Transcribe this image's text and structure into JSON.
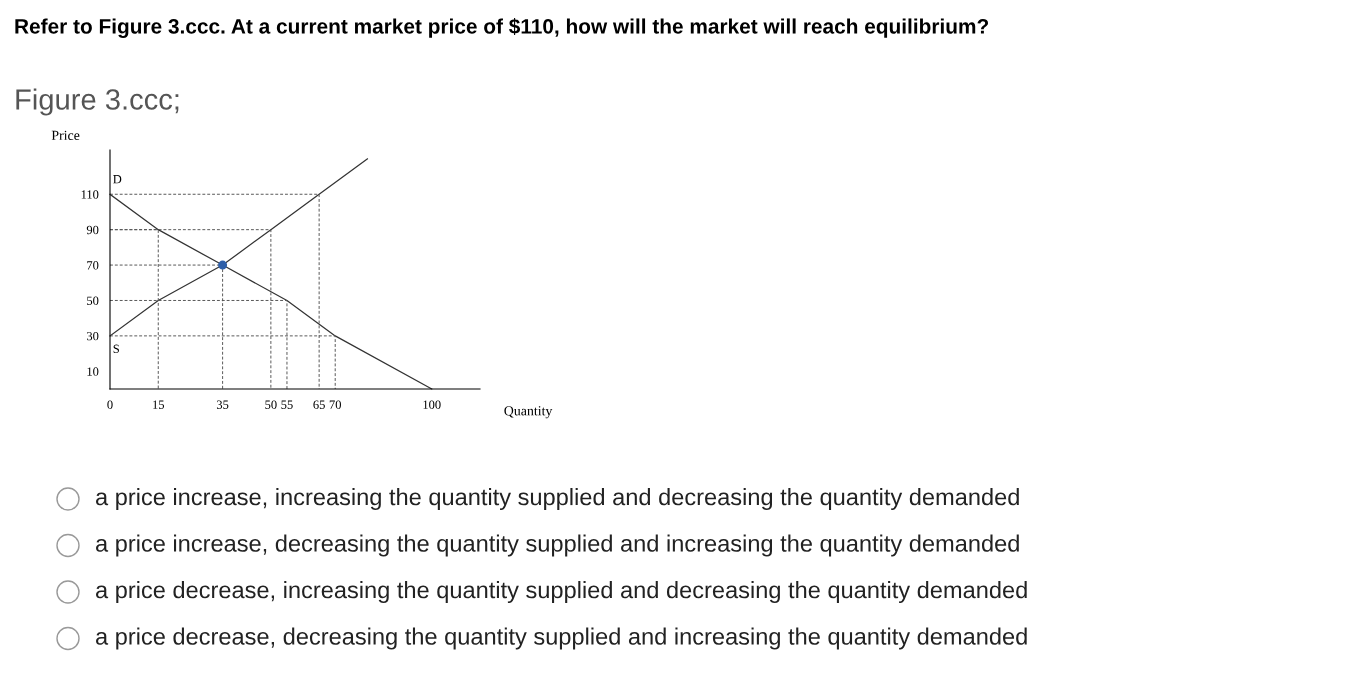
{
  "chart_data": {
    "type": "line",
    "title": "Refer to Figure 3.ccc. At a current market price of $110, how will the market will reach equilibrium?",
    "subtitle": "Figure 3.ccc;",
    "xlabel": "Quantity",
    "ylabel": "Price",
    "xlim": [
      0,
      115
    ],
    "ylim": [
      0,
      135
    ],
    "xticks": [
      0,
      15,
      35,
      50,
      55,
      65,
      70,
      100
    ],
    "yticks": [
      10,
      30,
      50,
      70,
      90,
      110
    ],
    "grid": false,
    "legend": false,
    "series": [
      {
        "name": "D",
        "color": "#333333",
        "line_style": "solid",
        "x": [
          0,
          15,
          35,
          55,
          70,
          100
        ],
        "values": [
          110,
          90,
          70,
          50,
          30,
          0
        ]
      },
      {
        "name": "S",
        "color": "#333333",
        "line_style": "solid",
        "x": [
          0,
          15,
          35,
          50,
          65,
          80
        ],
        "values": [
          30,
          50,
          70,
          90,
          110,
          130
        ]
      },
      {
        "type": "line",
        "color": "#555555",
        "line_style": "dashed",
        "x": [
          0,
          15,
          15
        ],
        "values": [
          90,
          90,
          0
        ]
      },
      {
        "type": "line",
        "color": "#555555",
        "line_style": "dashed",
        "x": [
          0,
          35,
          35
        ],
        "values": [
          70,
          70,
          0
        ]
      },
      {
        "type": "line",
        "color": "#555555",
        "line_style": "dashed",
        "x": [
          0,
          50,
          50
        ],
        "values": [
          90,
          90,
          0
        ]
      },
      {
        "type": "line",
        "color": "#555555",
        "line_style": "dashed",
        "x": [
          0,
          55,
          55
        ],
        "values": [
          50,
          50,
          0
        ]
      },
      {
        "type": "line",
        "color": "#555555",
        "line_style": "dashed",
        "x": [
          0,
          65,
          65
        ],
        "values": [
          110,
          110,
          0
        ]
      },
      {
        "type": "line",
        "color": "#555555",
        "line_style": "dashed",
        "x": [
          0,
          70,
          70
        ],
        "values": [
          30,
          30,
          0
        ]
      },
      {
        "type": "scatter",
        "color": "#2e5fa8",
        "marker": "circle",
        "x": [
          35
        ],
        "values": [
          70
        ]
      }
    ],
    "annotations": [
      "a price increase, increasing the quantity supplied and decreasing the quantity demanded",
      "a price increase, decreasing the quantity supplied and increasing the quantity demanded",
      "a price decrease, increasing the quantity supplied and decreasing the quantity demanded",
      "a price decrease, decreasing the quantity supplied and increasing the quantity demanded"
    ]
  }
}
